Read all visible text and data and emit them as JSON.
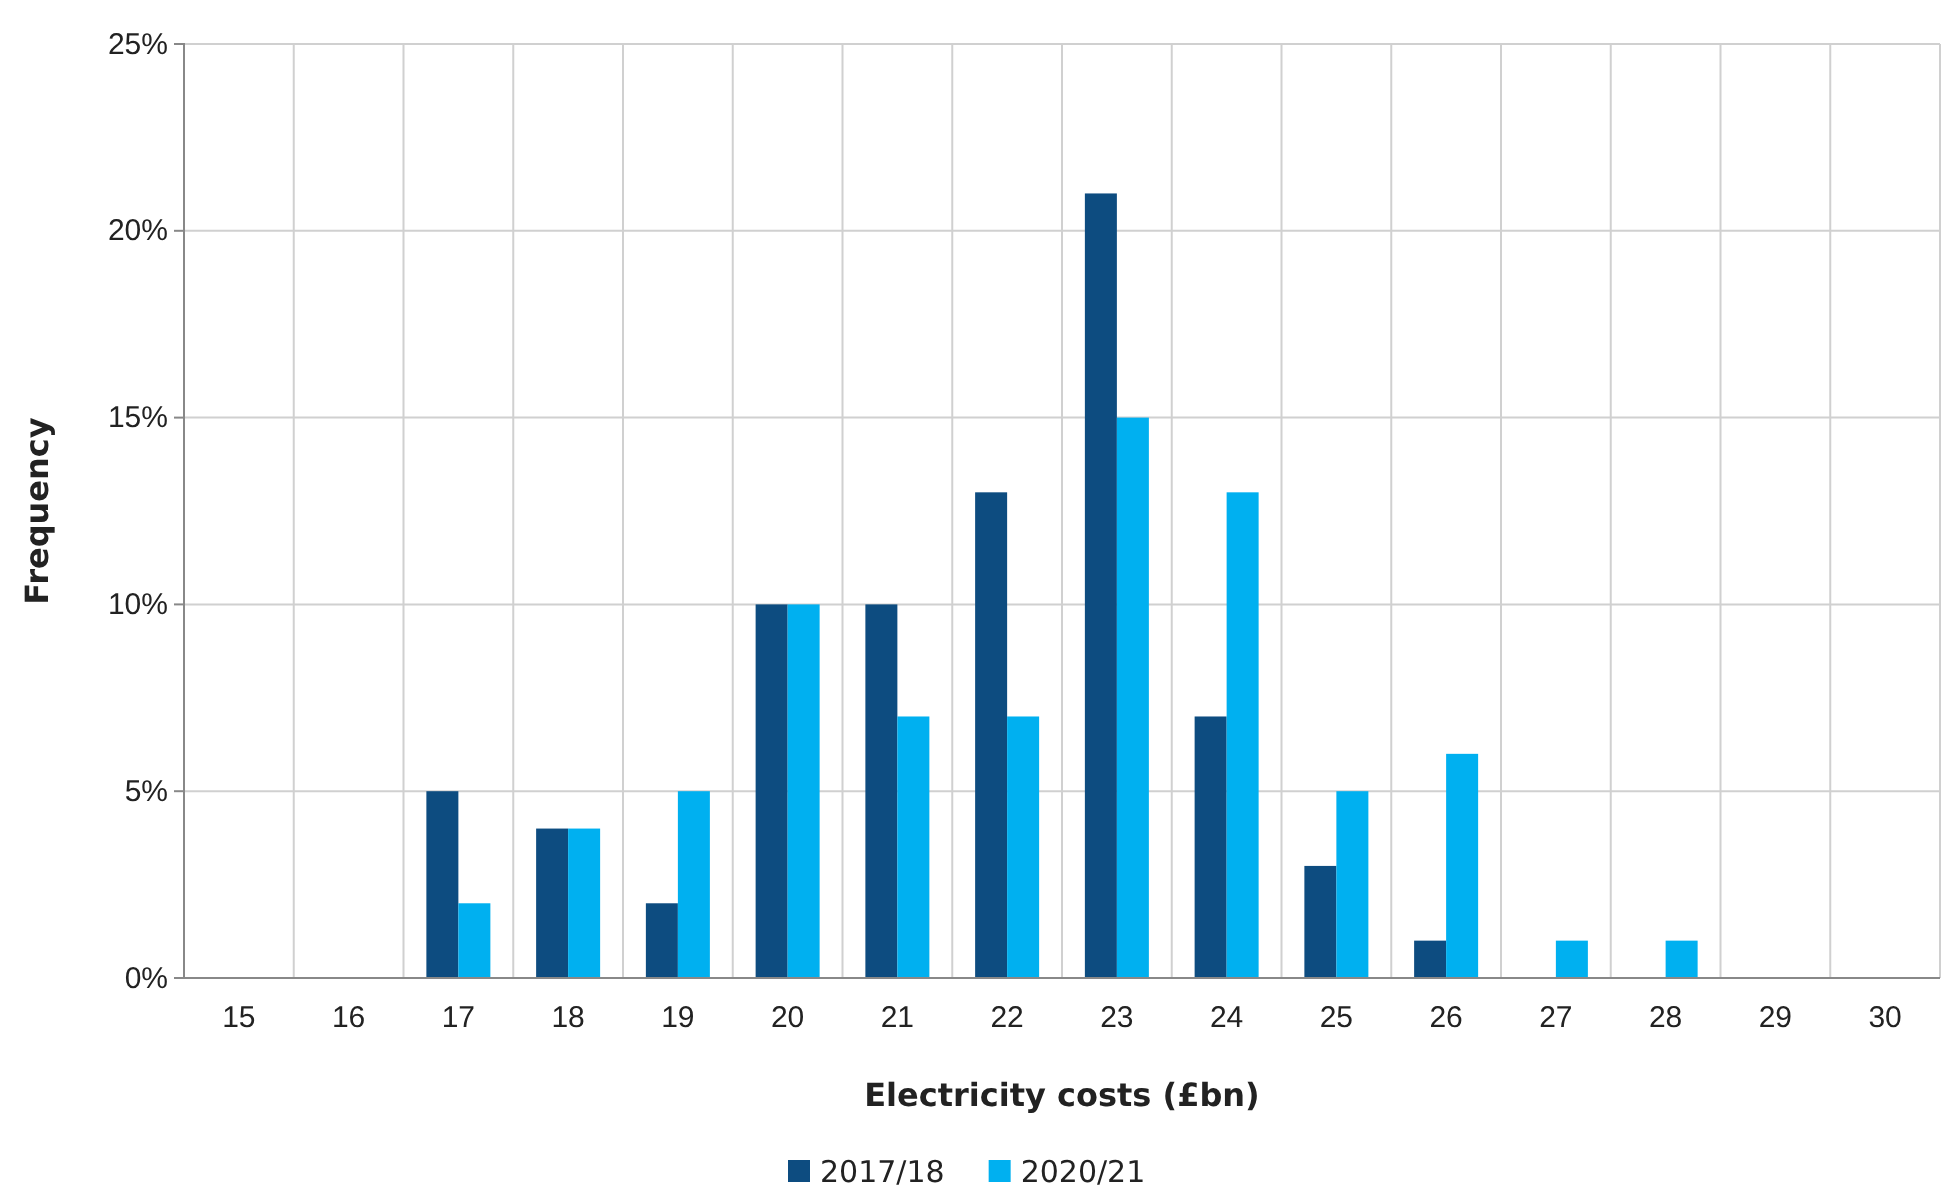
{
  "chart_data": {
    "type": "bar",
    "xlabel": "Electricity costs (£bn)",
    "ylabel": "Frequency",
    "categories": [
      "15",
      "16",
      "17",
      "18",
      "19",
      "20",
      "21",
      "22",
      "23",
      "24",
      "25",
      "26",
      "27",
      "28",
      "29",
      "30"
    ],
    "series": [
      {
        "name": "2017/18",
        "color": "#0d4c80",
        "values": [
          0,
          0,
          5,
          4,
          2,
          10,
          10,
          13,
          21,
          7,
          3,
          1,
          0,
          0,
          0,
          0
        ]
      },
      {
        "name": "2020/21",
        "color": "#00b0f0",
        "values": [
          0,
          0,
          2,
          4,
          5,
          10,
          7,
          7,
          15,
          13,
          5,
          6,
          1,
          1,
          0,
          0
        ]
      }
    ],
    "ylim": [
      0,
      25
    ],
    "yticks": [
      {
        "value": 0,
        "label": "0%"
      },
      {
        "value": 5,
        "label": "5%"
      },
      {
        "value": 10,
        "label": "10%"
      },
      {
        "value": 15,
        "label": "15%"
      },
      {
        "value": 20,
        "label": "20%"
      },
      {
        "value": 25,
        "label": "25%"
      }
    ],
    "grid": true,
    "legend": "bottom"
  }
}
